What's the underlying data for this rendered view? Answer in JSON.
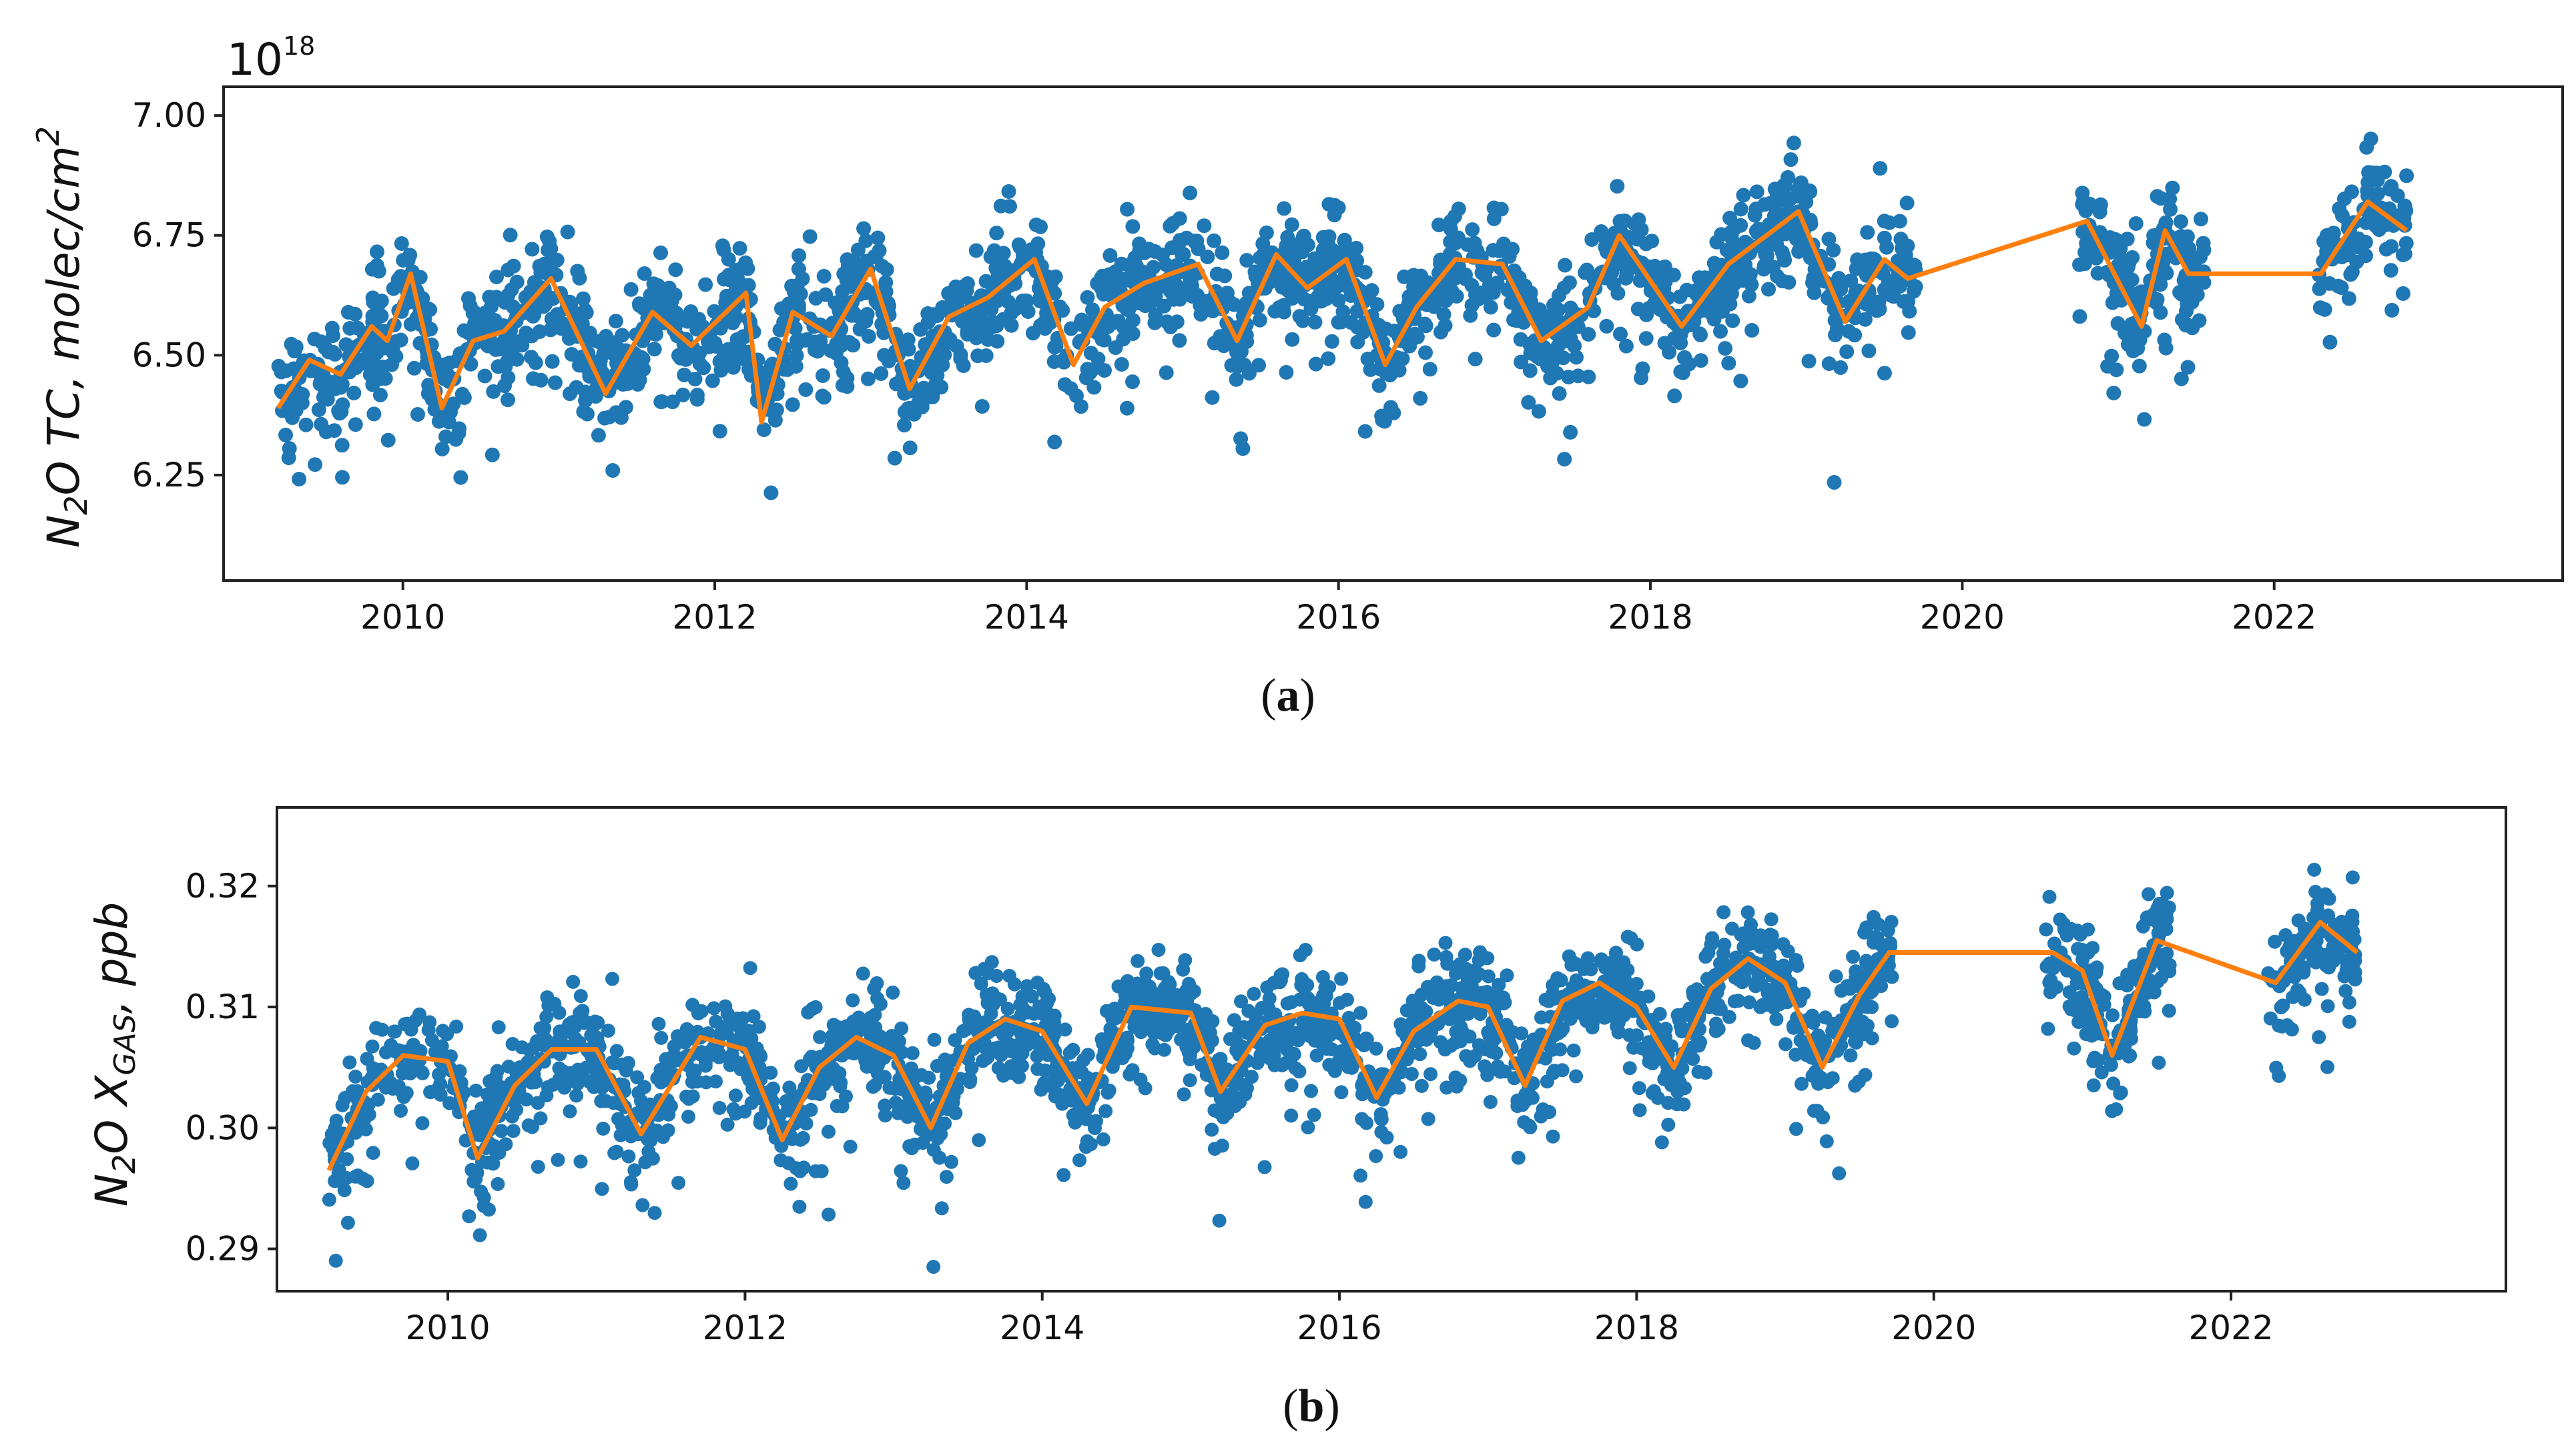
{
  "chart_data": [
    {
      "type": "scatter",
      "panel_label": "a",
      "ylabel_main": "N",
      "ylabel_sub": "2",
      "ylabel_mid": "O TC,  molec/cm",
      "ylabel_sup": "2",
      "scale_base": "10",
      "scale_exp": "18",
      "xlim": [
        2008.85,
        2023.85
      ],
      "ylim": [
        6.03,
        7.06
      ],
      "xticks": [
        2010,
        2012,
        2014,
        2016,
        2018,
        2020,
        2022
      ],
      "xtick_labels": [
        "2010",
        "2012",
        "2014",
        "2016",
        "2018",
        "2020",
        "2022"
      ],
      "yticks": [
        6.25,
        6.5,
        6.75,
        7.0
      ],
      "ytick_labels": [
        "6.25",
        "6.50",
        "6.75",
        "7.00"
      ],
      "colors": {
        "points": "#1f77b4",
        "trend": "#ff7f0e"
      },
      "series": [
        {
          "name": "trend",
          "x": [
            2009.2,
            2009.4,
            2009.6,
            2009.8,
            2009.9,
            2010.05,
            2010.25,
            2010.45,
            2010.65,
            2010.95,
            2011.3,
            2011.6,
            2011.85,
            2012.2,
            2012.3,
            2012.5,
            2012.75,
            2013.0,
            2013.25,
            2013.5,
            2013.75,
            2014.05,
            2014.3,
            2014.5,
            2014.75,
            2015.1,
            2015.35,
            2015.6,
            2015.8,
            2016.05,
            2016.3,
            2016.5,
            2016.75,
            2017.05,
            2017.3,
            2017.6,
            2017.8,
            2018.2,
            2018.5,
            2018.95,
            2019.25,
            2019.5,
            2019.65,
            2020.8,
            2021.15,
            2021.3,
            2021.45,
            2022.3,
            2022.6,
            2022.85
          ],
          "y": [
            6.39,
            6.49,
            6.46,
            6.56,
            6.53,
            6.67,
            6.39,
            6.53,
            6.55,
            6.66,
            6.42,
            6.59,
            6.52,
            6.63,
            6.36,
            6.59,
            6.54,
            6.68,
            6.43,
            6.58,
            6.62,
            6.7,
            6.48,
            6.6,
            6.65,
            6.69,
            6.53,
            6.71,
            6.64,
            6.7,
            6.48,
            6.6,
            6.7,
            6.69,
            6.53,
            6.6,
            6.75,
            6.56,
            6.69,
            6.8,
            6.57,
            6.7,
            6.66,
            6.78,
            6.56,
            6.76,
            6.67,
            6.67,
            6.82,
            6.76
          ]
        }
      ]
    },
    {
      "type": "scatter",
      "panel_label": "b",
      "ylabel_main": "N",
      "ylabel_sub": "2",
      "ylabel_mid": "O X",
      "ylabel_sub2": "GAS",
      "ylabel_end": ",  ppb",
      "xlim": [
        2008.85,
        2023.85
      ],
      "ylim": [
        0.2865,
        0.3265
      ],
      "xticks": [
        2010,
        2012,
        2014,
        2016,
        2018,
        2020,
        2022
      ],
      "xtick_labels": [
        "2010",
        "2012",
        "2014",
        "2016",
        "2018",
        "2020",
        "2022"
      ],
      "yticks": [
        0.29,
        0.3,
        0.31,
        0.32
      ],
      "ytick_labels": [
        "0.29",
        "0.30",
        "0.31",
        "0.32"
      ],
      "colors": {
        "points": "#1f77b4",
        "trend": "#ff7f0e"
      },
      "series": [
        {
          "name": "trend",
          "x": [
            2009.2,
            2009.45,
            2009.7,
            2010.0,
            2010.2,
            2010.45,
            2010.7,
            2011.0,
            2011.3,
            2011.7,
            2012.0,
            2012.25,
            2012.5,
            2012.75,
            2013.0,
            2013.25,
            2013.5,
            2013.75,
            2014.0,
            2014.3,
            2014.6,
            2015.0,
            2015.2,
            2015.5,
            2015.75,
            2016.0,
            2016.25,
            2016.5,
            2016.8,
            2017.0,
            2017.25,
            2017.5,
            2017.75,
            2018.0,
            2018.25,
            2018.5,
            2018.75,
            2019.0,
            2019.25,
            2019.5,
            2019.7,
            2020.8,
            2021.0,
            2021.2,
            2021.5,
            2022.3,
            2022.6,
            2022.85
          ],
          "y": [
            0.2965,
            0.303,
            0.306,
            0.3055,
            0.2975,
            0.3035,
            0.3065,
            0.3065,
            0.2995,
            0.3075,
            0.3065,
            0.299,
            0.305,
            0.3075,
            0.306,
            0.3,
            0.307,
            0.309,
            0.308,
            0.302,
            0.31,
            0.3095,
            0.303,
            0.3085,
            0.3095,
            0.309,
            0.3025,
            0.308,
            0.3105,
            0.31,
            0.3035,
            0.3105,
            0.312,
            0.31,
            0.305,
            0.3115,
            0.314,
            0.312,
            0.305,
            0.311,
            0.3145,
            0.3145,
            0.313,
            0.306,
            0.3155,
            0.312,
            0.317,
            0.3145
          ]
        }
      ]
    }
  ]
}
